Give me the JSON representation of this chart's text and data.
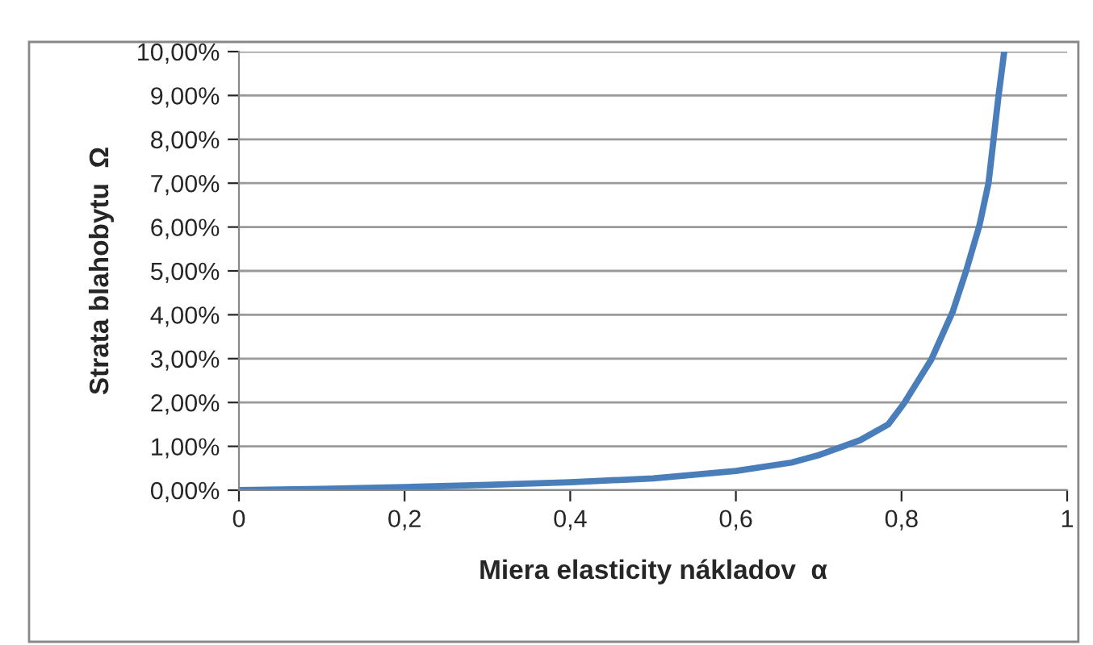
{
  "chart_data": {
    "type": "line",
    "xlabel": "Miera elasticity nákladov  α",
    "ylabel": "Strata blahobytu  Ω",
    "x": [
      0,
      0.1,
      0.2,
      0.3,
      0.4,
      0.5,
      0.6,
      0.667,
      0.7,
      0.75,
      0.784,
      0.803,
      0.836,
      0.862,
      0.878,
      0.894,
      0.905,
      0.911,
      0.917,
      0.924
    ],
    "series": [
      {
        "color": "#4a7ebb",
        "values": [
          0,
          0.03,
          0.07,
          0.12,
          0.18,
          0.27,
          0.44,
          0.63,
          0.8,
          1.14,
          1.5,
          1.98,
          2.98,
          4.08,
          5.0,
          6.03,
          7.0,
          7.98,
          8.97,
          10.0
        ]
      }
    ],
    "xlim": [
      0,
      1
    ],
    "ylim": [
      0,
      10
    ],
    "xticks": [
      0,
      {
        "value": 0.2,
        "label": "0,2"
      },
      {
        "value": 0.4,
        "label": "0,4"
      },
      {
        "value": 0.6,
        "label": "0,6"
      },
      {
        "value": 0.8,
        "label": "0,8"
      },
      1
    ],
    "yticks": [
      {
        "value": 0,
        "label": "0,00%"
      },
      {
        "value": 1,
        "label": "1,00%"
      },
      {
        "value": 2,
        "label": "2,00%"
      },
      {
        "value": 3,
        "label": "3,00%"
      },
      {
        "value": 4,
        "label": "4,00%"
      },
      {
        "value": 5,
        "label": "5,00%"
      },
      {
        "value": 6,
        "label": "6,00%"
      },
      {
        "value": 7,
        "label": "7,00%"
      },
      {
        "value": 8,
        "label": "8,00%"
      },
      {
        "value": 9,
        "label": "9,00%"
      },
      {
        "value": 10,
        "label": "10,00%"
      }
    ],
    "grid": "y",
    "marker": "none",
    "line_style": "solid",
    "legend": false
  }
}
